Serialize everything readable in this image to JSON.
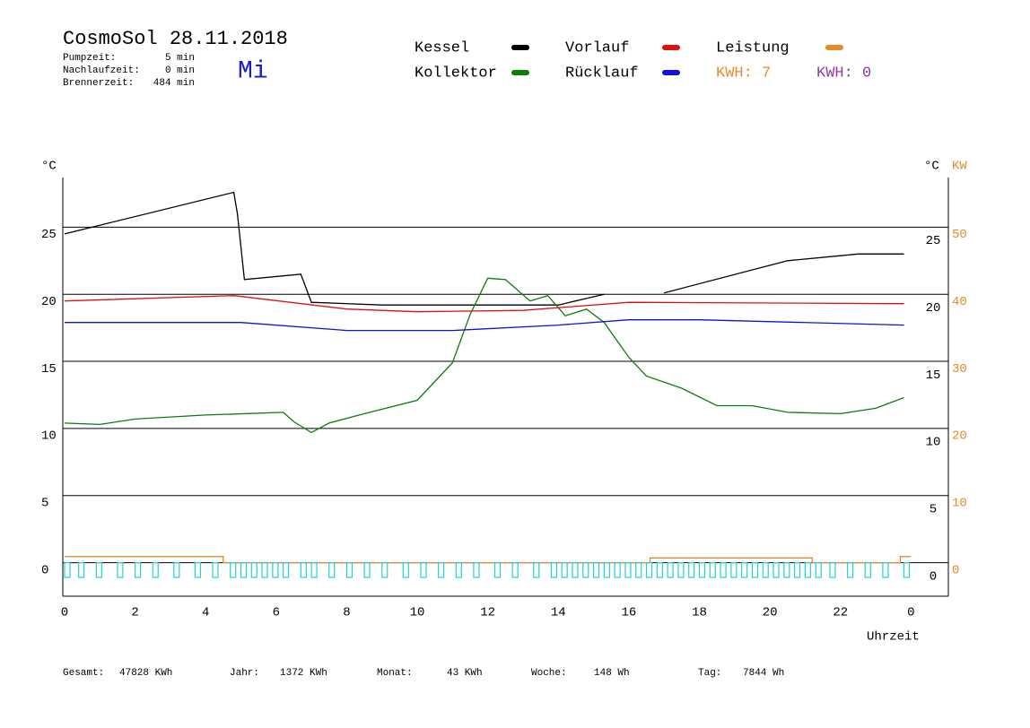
{
  "header": {
    "title": "CosmoSol 28.11.2018",
    "weekday": "Mi",
    "stats": [
      {
        "label": "Pumpzeit:",
        "value": "5 min"
      },
      {
        "label": "Nachlaufzeit:",
        "value": "0 min"
      },
      {
        "label": "Brennerzeit:",
        "value": "484 min"
      }
    ],
    "kwh": [
      {
        "text": "KWH: 7",
        "color": "#e8892a"
      },
      {
        "text": "KWH: 0",
        "color": "#8e3aa8"
      }
    ]
  },
  "chart_data": {
    "type": "line",
    "y_unit": "°C",
    "y2_unit_c": "°C",
    "y2_unit": "KW",
    "xlabel": "Uhrzeit",
    "xlim": [
      -0.05,
      25.06
    ],
    "xticks": [
      0,
      2,
      4,
      6,
      8,
      10,
      12,
      14,
      16,
      18,
      20,
      22,
      {
        "value": 24,
        "label": "0"
      }
    ],
    "ylim": [
      -2.5,
      28.7
    ],
    "yticks": [
      0,
      5,
      10,
      15,
      20,
      25
    ],
    "y2lim": [
      -5,
      57.4
    ],
    "y2ticks": [
      0,
      10,
      20,
      30,
      40,
      50
    ],
    "grid": true,
    "series": [
      {
        "name": "Kessel",
        "color": "#000000",
        "x": [
          0,
          4.8,
          4.9,
          5.1,
          6.7,
          7.0,
          9.0,
          14.0,
          15.3,
          15.4,
          17.0,
          20.5,
          22.5,
          23.8
        ],
        "values": [
          24.5,
          27.6,
          26.0,
          21.1,
          21.5,
          19.4,
          19.2,
          19.2,
          20.0,
          null,
          20.1,
          22.5,
          23.0,
          23.0
        ]
      },
      {
        "name": "Kollektor",
        "color": "#0a7d0a",
        "x": [
          0,
          1,
          2,
          4,
          6.2,
          6.5,
          7,
          7.5,
          8.5,
          10,
          11,
          11.5,
          12,
          12.5,
          13.2,
          13.7,
          14.2,
          14.8,
          15.3,
          16,
          16.5,
          17.5,
          18.5,
          19.5,
          20.5,
          22,
          23,
          23.8
        ],
        "values": [
          10.4,
          10.3,
          10.7,
          11.0,
          11.2,
          10.5,
          9.7,
          10.4,
          11.1,
          12.1,
          14.9,
          18.5,
          21.2,
          21.1,
          19.5,
          19.9,
          18.4,
          18.9,
          17.9,
          15.3,
          13.9,
          13.0,
          11.7,
          11.7,
          11.2,
          11.1,
          11.5,
          12.3
        ]
      },
      {
        "name": "Vorlauf",
        "color": "#dd1111",
        "x": [
          0,
          4.8,
          8,
          10,
          13,
          16,
          23.8
        ],
        "values": [
          19.5,
          19.9,
          18.9,
          18.7,
          18.8,
          19.4,
          19.3
        ]
      },
      {
        "name": "Rücklauf",
        "color": "#1111dd",
        "x": [
          0,
          5,
          8,
          11,
          14,
          16,
          18,
          23.8
        ],
        "values": [
          17.9,
          17.9,
          17.3,
          17.3,
          17.7,
          18.1,
          18.1,
          17.7
        ]
      },
      {
        "name": "Leistung",
        "color": "#e8892a",
        "axis": "y2",
        "x": [
          0,
          4.5,
          4.5,
          16.6,
          16.6,
          21.2,
          21.2,
          23.7,
          23.7,
          24
        ],
        "values": [
          0.9,
          0.9,
          0,
          0,
          0.7,
          0.7,
          0,
          0,
          0.9,
          0.9
        ]
      },
      {
        "type": "pulses",
        "color": "#22d3d3",
        "x": [
          0,
          0.4,
          0.9,
          1.5,
          2.0,
          2.5,
          3.1,
          3.7,
          4.2,
          4.7,
          5.0,
          5.3,
          5.6,
          5.9,
          6.2,
          6.7,
          7.0,
          7.5,
          8.0,
          8.5,
          9.0,
          9.6,
          10.1,
          10.6,
          11.1,
          11.6,
          12.2,
          12.7,
          13.3,
          13.8,
          14.1,
          14.4,
          14.7,
          15.0,
          15.3,
          15.6,
          15.9,
          16.2,
          16.5,
          16.8,
          17.1,
          17.4,
          17.7,
          18.0,
          18.3,
          18.6,
          18.9,
          19.2,
          19.5,
          19.8,
          20.1,
          20.4,
          20.7,
          21.0,
          21.3,
          21.7,
          22.2,
          22.7,
          23.2,
          23.8
        ],
        "values": [
          -1.1,
          -1.1,
          -1.1,
          -1.1,
          -1.1,
          -1.1,
          -1.1,
          -1.1,
          -1.1,
          -1.1,
          -1.1,
          -1.1,
          -1.1,
          -1.1,
          -1.1,
          -1.1,
          -1.1,
          -1.1,
          -1.1,
          -1.1,
          -1.1,
          -1.1,
          -1.1,
          -1.1,
          -1.1,
          -1.1,
          -1.1,
          -1.1,
          -1.1,
          -1.1,
          -1.1,
          -1.1,
          -1.1,
          -1.1,
          -1.1,
          -1.1,
          -1.1,
          -1.1,
          -1.1,
          -1.1,
          -1.1,
          -1.1,
          -1.1,
          -1.1,
          -1.1,
          -1.1,
          -1.1,
          -1.1,
          -1.1,
          -1.1,
          -1.1,
          -1.1,
          -1.1,
          -1.1,
          -1.1,
          -1.1,
          -1.1,
          -1.1,
          -1.1,
          -1.1
        ]
      }
    ]
  },
  "footer": [
    {
      "label": "Gesamt:",
      "value": "47828 KWh"
    },
    {
      "label": "Jahr:",
      "value": "1372 KWh"
    },
    {
      "label": "Monat:",
      "value": "43 KWh"
    },
    {
      "label": "Woche:",
      "value": "148 Wh"
    },
    {
      "label": "Tag:",
      "value": "7844 Wh"
    }
  ]
}
